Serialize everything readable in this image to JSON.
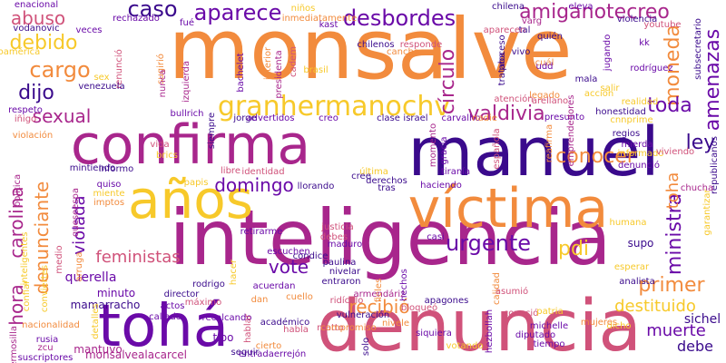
{
  "word_cloud": {
    "palette": {
      "orange": "#f28b3d",
      "yellow": "#f7c92a",
      "magenta": "#a8268c",
      "purple": "#6a0aa8",
      "rose": "#d0527a",
      "navy": "#3a0a8c",
      "deep": "#2e0a78"
    },
    "words": [
      "monsalve",
      "inteligencia",
      "denuncia",
      "manuel",
      "confirma",
      "tohá",
      "víctima",
      "años",
      "granhermanochv",
      "desbordes",
      "amiganotecreo",
      "aparece",
      "caso",
      "abuso",
      "debido",
      "cargo",
      "dijo",
      "sexual",
      "valdivia",
      "círculo",
      "moneda",
      "amenazas",
      "toda",
      "ley",
      "conocer",
      "domingo",
      "carolina",
      "denunciante",
      "hora",
      "violada",
      "feministas",
      "urgente",
      "vote",
      "recibió",
      "pdi",
      "ministra",
      "toha",
      "primer",
      "destituido",
      "muerte",
      "debe",
      "querella",
      "minuto",
      "mamarracho",
      "mantuvo",
      "monsalvealacarcel",
      "hermosilla",
      "suscriptores",
      "entradaerrejón",
      "tipo",
      "cierto",
      "dan",
      "director",
      "máximo",
      "detalles",
      "sichel",
      "diputado",
      "tiempo",
      "michelle",
      "hezbollah",
      "enacional",
      "rechazado",
      "inmediatamente",
      "aparecen",
      "chilena",
      "eleva",
      "niños",
      "veces",
      "vodanovic",
      "renunció",
      "sugirió",
      "bachelet",
      "interior",
      "izquierda",
      "fué",
      "kast",
      "chilenos",
      "cadem",
      "presidenta",
      "brasil",
      "cancha",
      "responde",
      "proceso",
      "trataba",
      "vivo",
      "legado",
      "cuál",
      "quién",
      "varg",
      "violencia",
      "youtube",
      "jugando",
      "rodríguez",
      "kk",
      "tal",
      "udd",
      "subsecretario",
      "mala",
      "salir",
      "acción",
      "atención",
      "arellano",
      "honestidad",
      "realidad",
      "regios",
      "cnnprime",
      "mierda",
      "informado",
      "viviendo",
      "denunció",
      "republicanos",
      "chucha",
      "garantizar",
      "humana",
      "supo",
      "esperar",
      "analista",
      "calidad",
      "asumió",
      "conoció",
      "patria",
      "dicho",
      "acuerdan",
      "ridículo",
      "entraron",
      "nivelar",
      "paulina",
      "fieles",
      "vulneración",
      "académico",
      "actos",
      "rodrigo",
      "escuchen",
      "condice",
      "maduro",
      "debes",
      "justicia",
      "casi",
      "tras",
      "llorando",
      "derechos",
      "haciendo",
      "tiranía",
      "papis",
      "libre",
      "identidad",
      "última",
      "cree",
      "mintiendo",
      "informo",
      "quiso",
      "miente",
      "imptos",
      "vida",
      "brics",
      "bullrich",
      "siempre",
      "jorge",
      "advertidos",
      "creo",
      "clase",
      "israel",
      "carvalho",
      "gracia",
      "española",
      "momento",
      "presunto",
      "emprendedores",
      "reafirma",
      "respeto",
      "iñigo",
      "violación",
      "política",
      "venezuela",
      "nunca",
      "sex",
      "latinoamérica",
      "hacer",
      "cuello",
      "seguir",
      "recalcando",
      "callado",
      "rusia",
      "zcu",
      "nacionalidad",
      "hablar",
      "solo",
      "siquiera",
      "votando",
      "mujeres",
      "bloqueó",
      "armendáriz",
      "apagones",
      "hechos",
      "matto",
      "compromiso",
      "inteligentes",
      "medio",
      "queseespa",
      "conviertes",
      "retirarme",
      "confiar",
      "arruga",
      "nadie",
      "nivele",
      "habla"
    ]
  }
}
